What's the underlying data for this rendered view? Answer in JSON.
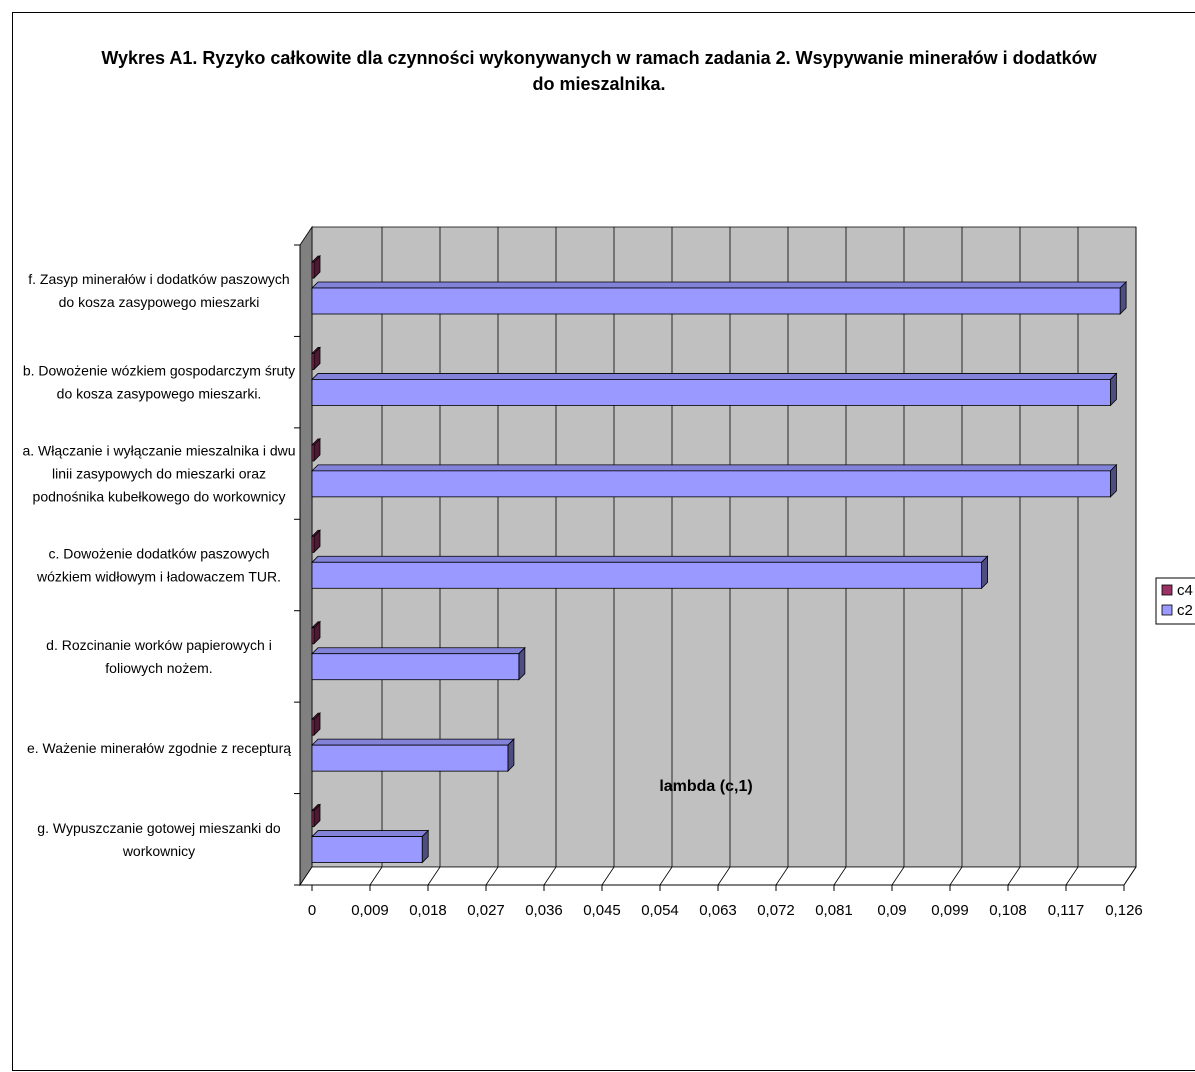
{
  "chart_data": {
    "type": "bar",
    "orientation": "horizontal",
    "three_d": true,
    "title": "Wykres A1. Ryzyko całkowite dla czynności wykonywanych w ramach zadania 2. Wsypywanie minerałów i dodatków do mieszalnika.",
    "title_lines": [
      "Wykres A1. Ryzyko całkowite dla czynności wykonywanych w ramach zadania 2. Wsypywanie minerałów i dodatków",
      "do mieszalnika."
    ],
    "xlabel": "lambda (c,1)",
    "ylabel": "",
    "xlim": [
      0,
      0.126
    ],
    "x_ticks": [
      "0",
      "0,009",
      "0,018",
      "0,027",
      "0,036",
      "0,045",
      "0,054",
      "0,063",
      "0,072",
      "0,081",
      "0,09",
      "0,099",
      "0,108",
      "0,117",
      "0,126"
    ],
    "grid": true,
    "legend_position": "right",
    "categories": [
      [
        "f. Zasyp minerałów i dodatków paszowych",
        "do kosza zasypowego mieszarki"
      ],
      [
        "b. Dowożenie wózkiem gospodarczym śruty",
        "do kosza zasypowego mieszarki."
      ],
      [
        "a. Włączanie i wyłączanie mieszalnika i dwu",
        "linii zasypowych do mieszarki oraz",
        "podnośnika kubełkowego do workownicy"
      ],
      [
        "c. Dowożenie dodatków paszowych",
        "wózkiem widłowym i ładowaczem TUR."
      ],
      [
        "d. Rozcinanie worków papierowych i",
        "foliowych nożem."
      ],
      [
        "e. Ważenie minerałów zgodnie z recepturą"
      ],
      [
        "g. Wypuszczanie gotowej mieszanki do",
        "workownicy"
      ]
    ],
    "series": [
      {
        "name": "c4",
        "color": "#993366",
        "values": [
          0.0001,
          0.0001,
          0.0001,
          0.0001,
          0.0001,
          0.0001,
          0.0001
        ]
      },
      {
        "name": "c2",
        "color": "#9999ff",
        "values": [
          0.1254,
          0.1239,
          0.1239,
          0.1039,
          0.0321,
          0.0304,
          0.0171
        ]
      }
    ],
    "colors": {
      "plot_wall": "#c0c0c0",
      "side_wall": "#808080",
      "floor": "#ffffff",
      "grid": "#000000"
    }
  }
}
